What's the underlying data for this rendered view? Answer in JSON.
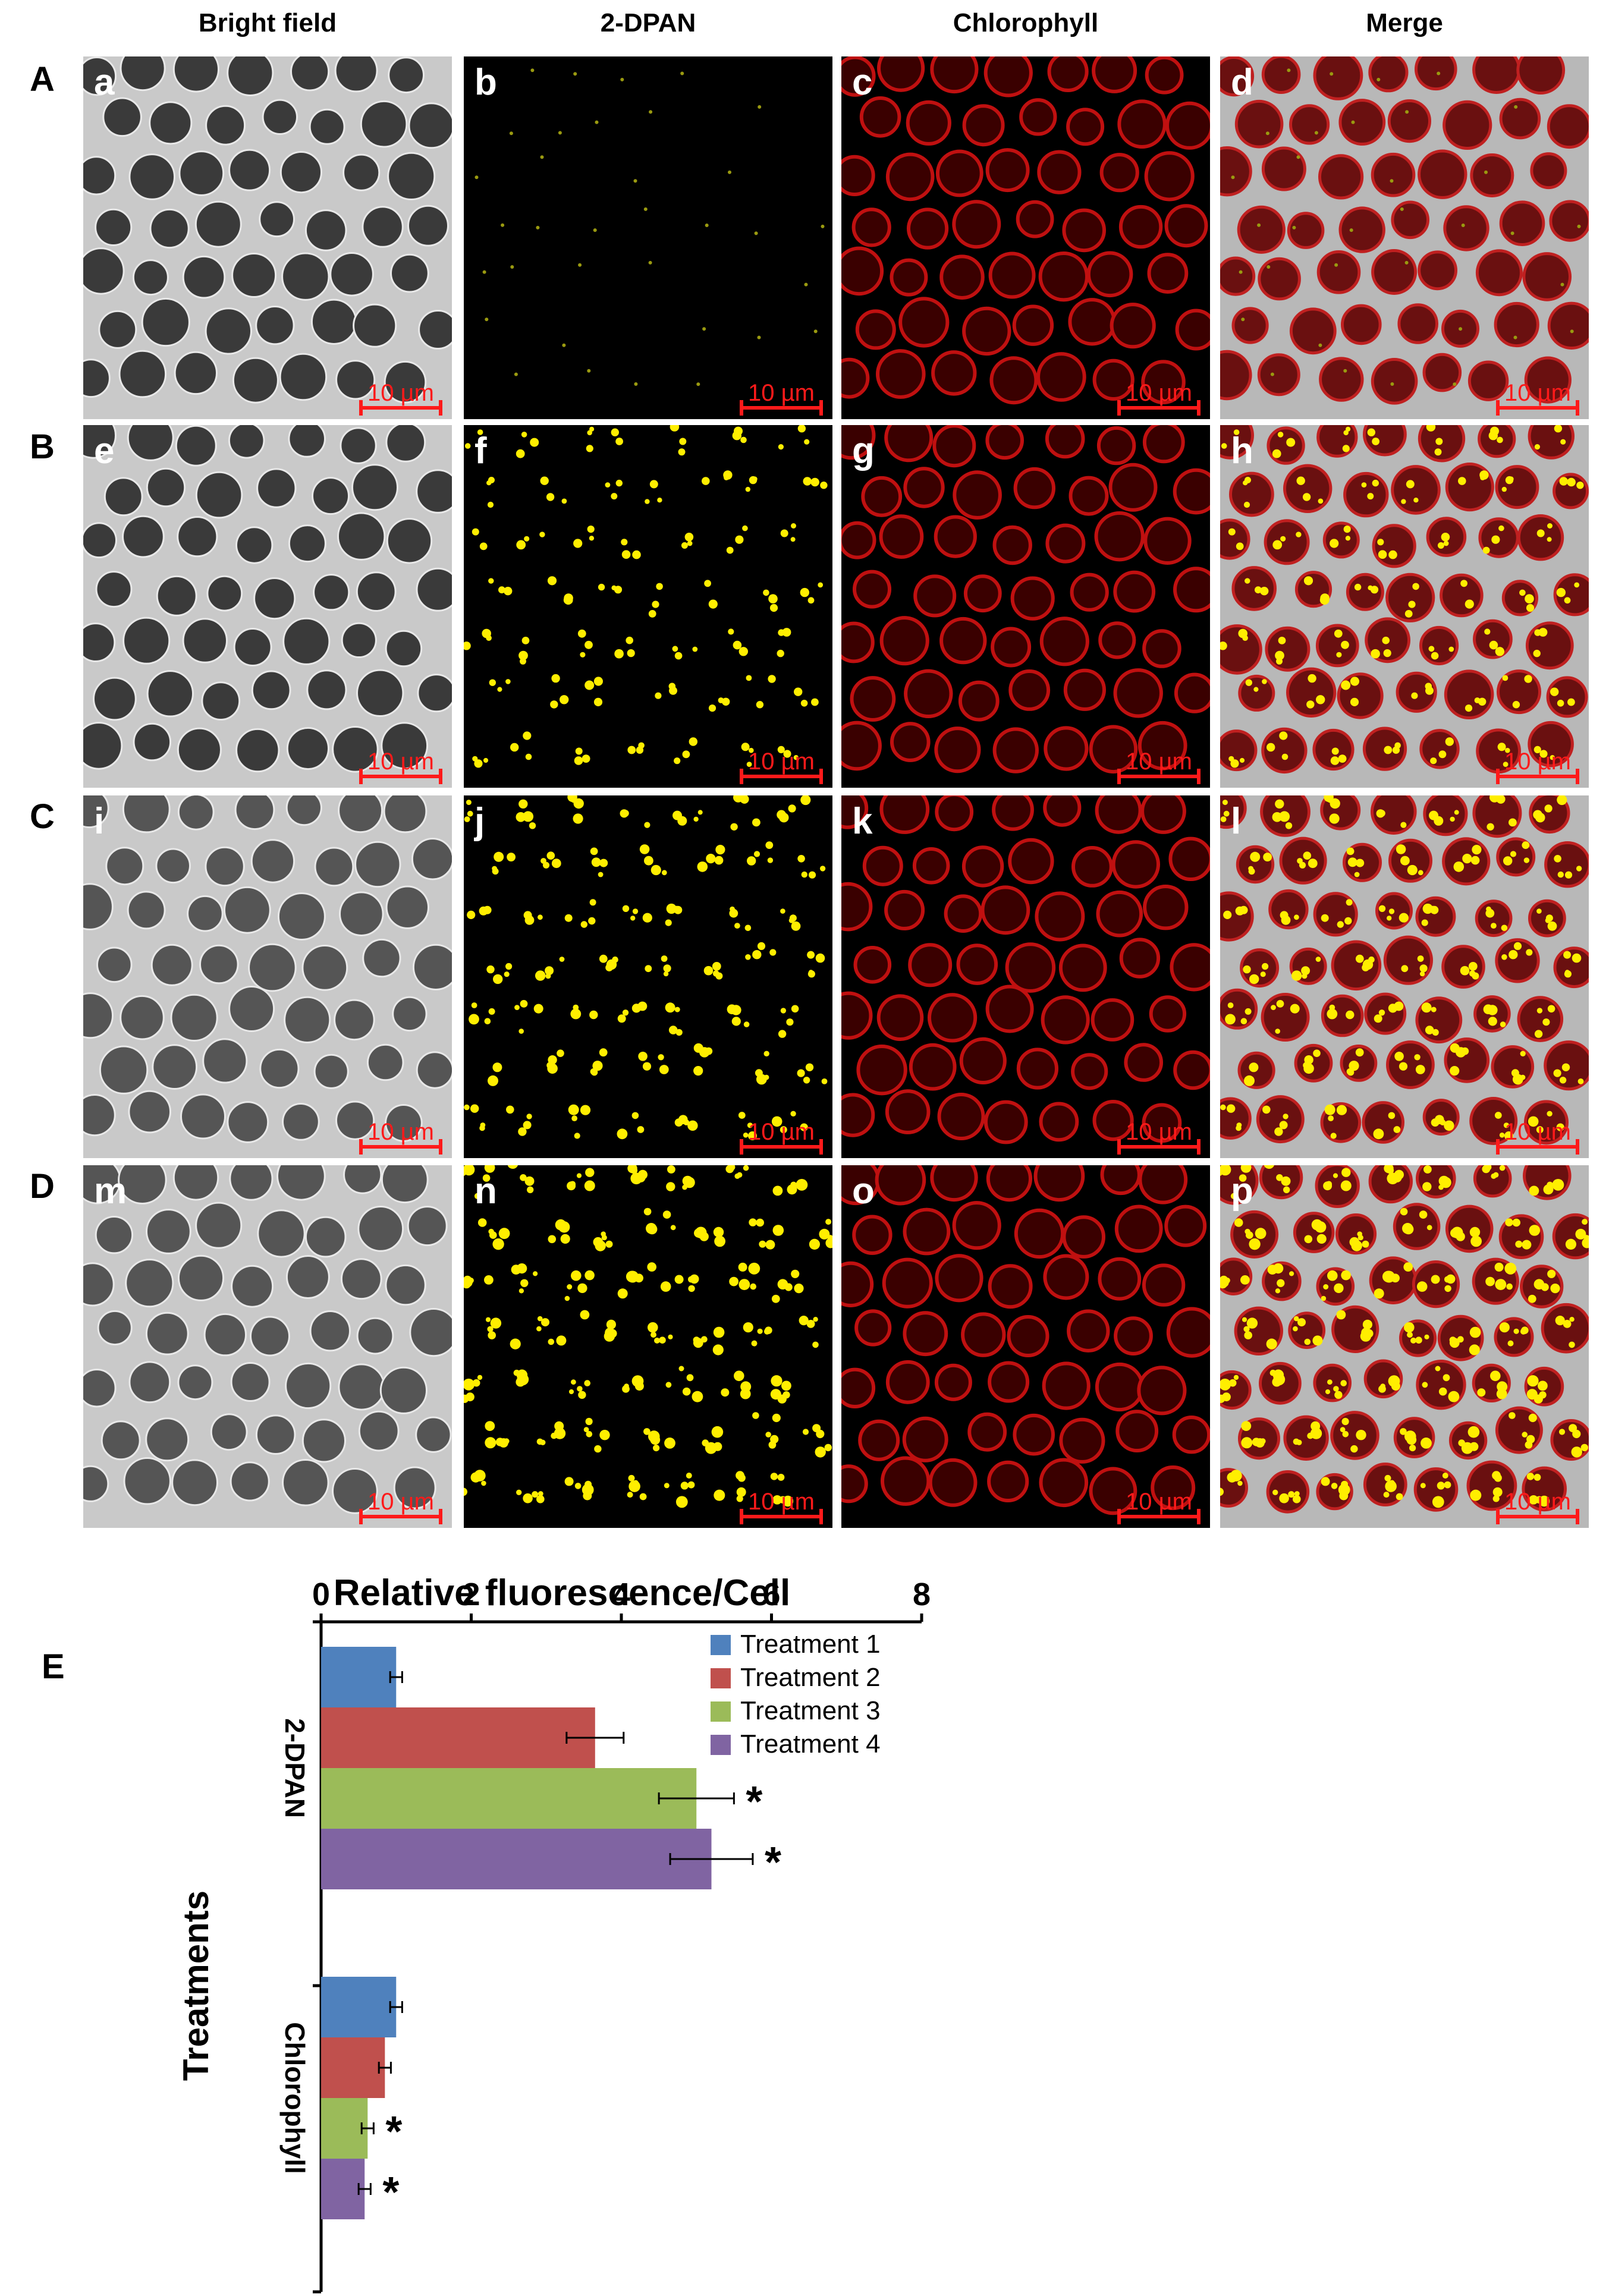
{
  "figure": {
    "column_titles": [
      "Bright field",
      "2-DPAN",
      "Chlorophyll",
      "Merge"
    ],
    "row_labels": [
      "A",
      "B",
      "C",
      "D"
    ],
    "panel_letters": [
      "a",
      "b",
      "c",
      "d",
      "e",
      "f",
      "g",
      "h",
      "i",
      "j",
      "k",
      "l",
      "m",
      "n",
      "o",
      "p"
    ],
    "scale_bar": "10 µm",
    "panel_e_label": "E"
  },
  "colors": {
    "treatment_1": "#4f81bd",
    "treatment_2": "#c0504d",
    "treatment_3": "#9bbb59",
    "treatment_4": "#8064a2",
    "scale_bar": "#ff1a1a"
  },
  "chart_data": {
    "type": "bar",
    "orientation": "horizontal",
    "title": "Relative fluorescence/Cell",
    "xlabel": "Relative fluorescence/Cell",
    "ylabel": "Treatments",
    "xlim": [
      0,
      8
    ],
    "xticks": [
      0,
      2,
      4,
      6,
      8
    ],
    "categories": [
      "2-DPAN",
      "Chlorophyll"
    ],
    "legend_position": "top-right",
    "series": [
      {
        "name": "Treatment 1",
        "values": [
          1.0,
          1.0
        ],
        "errors": [
          0.08,
          0.08
        ],
        "significant": [
          false,
          false
        ]
      },
      {
        "name": "Treatment 2",
        "values": [
          3.65,
          0.85
        ],
        "errors": [
          0.38,
          0.08
        ],
        "significant": [
          false,
          false
        ]
      },
      {
        "name": "Treatment 3",
        "values": [
          5.0,
          0.62
        ],
        "errors": [
          0.5,
          0.08
        ],
        "significant": [
          true,
          true
        ]
      },
      {
        "name": "Treatment 4",
        "values": [
          5.2,
          0.58
        ],
        "errors": [
          0.55,
          0.08
        ],
        "significant": [
          true,
          true
        ]
      }
    ],
    "significance_marker": "*"
  }
}
